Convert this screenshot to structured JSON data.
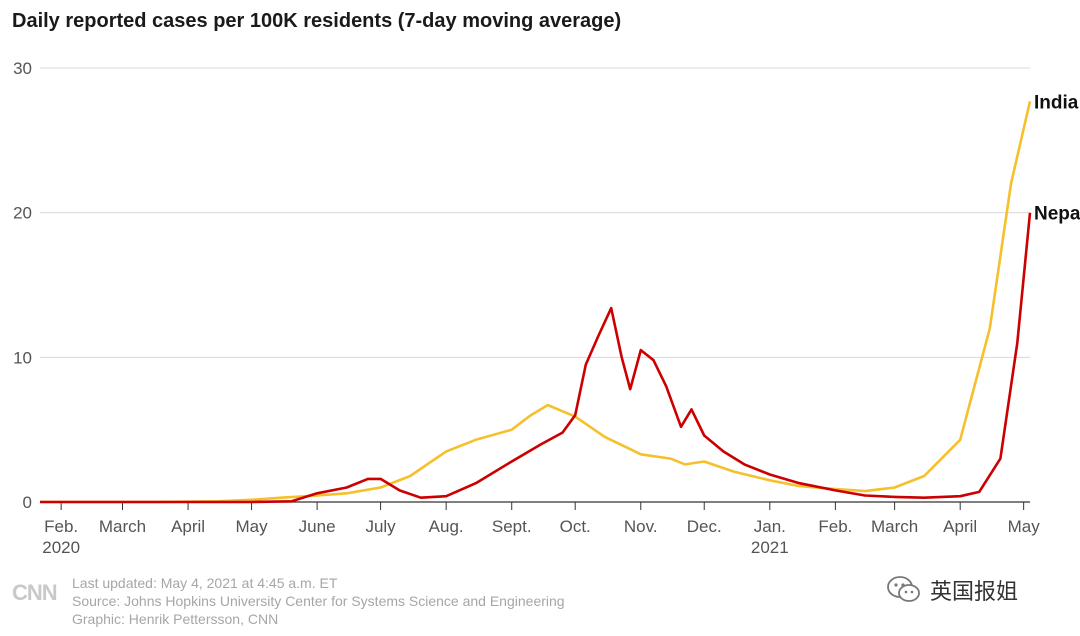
{
  "title": "Daily reported cases per 100K residents (7-day moving average)",
  "footer": {
    "logo": "CNN",
    "updated": "Last updated: May 4, 2021 at 4:45 a.m. ET",
    "source": "Source: Johns Hopkins University Center for Systems Science and Engineering",
    "graphic": "Graphic: Henrik Pettersson, CNN"
  },
  "watermark": {
    "text": "英国报姐",
    "icon": "wechat-icon"
  },
  "colors": {
    "india": "#f5c02c",
    "nepal": "#cc0000",
    "grid": "#d8d8d8"
  },
  "chart_data": {
    "type": "line",
    "title": "Daily reported cases per 100K residents (7-day moving average)",
    "ylim": [
      0,
      30
    ],
    "yticks": [
      "0",
      "10",
      "20",
      "30"
    ],
    "xrange": [
      "2020-01-22",
      "2021-05-04"
    ],
    "xticks": [
      {
        "date": "2020-02-01",
        "label": "Feb.",
        "sub": "2020"
      },
      {
        "date": "2020-03-01",
        "label": "March"
      },
      {
        "date": "2020-04-01",
        "label": "April"
      },
      {
        "date": "2020-05-01",
        "label": "May"
      },
      {
        "date": "2020-06-01",
        "label": "June"
      },
      {
        "date": "2020-07-01",
        "label": "July"
      },
      {
        "date": "2020-08-01",
        "label": "Aug."
      },
      {
        "date": "2020-09-01",
        "label": "Sept."
      },
      {
        "date": "2020-10-01",
        "label": "Oct."
      },
      {
        "date": "2020-11-01",
        "label": "Nov."
      },
      {
        "date": "2020-12-01",
        "label": "Dec."
      },
      {
        "date": "2021-01-01",
        "label": "Jan.",
        "sub": "2021"
      },
      {
        "date": "2021-02-01",
        "label": "Feb."
      },
      {
        "date": "2021-03-01",
        "label": "March"
      },
      {
        "date": "2021-04-01",
        "label": "April"
      },
      {
        "date": "2021-05-01",
        "label": "May"
      }
    ],
    "grid": true,
    "series": [
      {
        "name": "India",
        "color": "#f5c02c",
        "points": [
          [
            "2020-01-22",
            0
          ],
          [
            "2020-03-15",
            0
          ],
          [
            "2020-04-15",
            0.05
          ],
          [
            "2020-05-01",
            0.15
          ],
          [
            "2020-05-15",
            0.3
          ],
          [
            "2020-06-01",
            0.45
          ],
          [
            "2020-06-15",
            0.6
          ],
          [
            "2020-07-01",
            1.0
          ],
          [
            "2020-07-15",
            1.8
          ],
          [
            "2020-08-01",
            3.5
          ],
          [
            "2020-08-15",
            4.3
          ],
          [
            "2020-09-01",
            5.0
          ],
          [
            "2020-09-10",
            6.0
          ],
          [
            "2020-09-18",
            6.7
          ],
          [
            "2020-10-01",
            5.9
          ],
          [
            "2020-10-15",
            4.5
          ],
          [
            "2020-11-01",
            3.3
          ],
          [
            "2020-11-15",
            3.0
          ],
          [
            "2020-11-22",
            2.6
          ],
          [
            "2020-12-01",
            2.8
          ],
          [
            "2020-12-15",
            2.1
          ],
          [
            "2021-01-01",
            1.5
          ],
          [
            "2021-01-15",
            1.1
          ],
          [
            "2021-02-01",
            0.9
          ],
          [
            "2021-02-15",
            0.75
          ],
          [
            "2021-03-01",
            1.0
          ],
          [
            "2021-03-15",
            1.8
          ],
          [
            "2021-04-01",
            4.3
          ],
          [
            "2021-04-15",
            12.0
          ],
          [
            "2021-04-25",
            22.0
          ],
          [
            "2021-05-04",
            27.7
          ]
        ]
      },
      {
        "name": "Nepal",
        "color": "#cc0000",
        "points": [
          [
            "2020-01-22",
            0
          ],
          [
            "2020-05-01",
            0
          ],
          [
            "2020-05-20",
            0.05
          ],
          [
            "2020-06-01",
            0.6
          ],
          [
            "2020-06-15",
            1.0
          ],
          [
            "2020-06-25",
            1.6
          ],
          [
            "2020-07-01",
            1.6
          ],
          [
            "2020-07-10",
            0.8
          ],
          [
            "2020-07-20",
            0.3
          ],
          [
            "2020-08-01",
            0.4
          ],
          [
            "2020-08-15",
            1.3
          ],
          [
            "2020-09-01",
            2.8
          ],
          [
            "2020-09-15",
            4.0
          ],
          [
            "2020-09-25",
            4.8
          ],
          [
            "2020-10-01",
            6.0
          ],
          [
            "2020-10-06",
            9.5
          ],
          [
            "2020-10-12",
            11.5
          ],
          [
            "2020-10-18",
            13.4
          ],
          [
            "2020-10-23",
            10.0
          ],
          [
            "2020-10-27",
            7.8
          ],
          [
            "2020-11-01",
            10.5
          ],
          [
            "2020-11-07",
            9.8
          ],
          [
            "2020-11-13",
            8.0
          ],
          [
            "2020-11-20",
            5.2
          ],
          [
            "2020-11-25",
            6.4
          ],
          [
            "2020-12-01",
            4.6
          ],
          [
            "2020-12-10",
            3.5
          ],
          [
            "2020-12-20",
            2.6
          ],
          [
            "2021-01-01",
            1.9
          ],
          [
            "2021-01-15",
            1.3
          ],
          [
            "2021-02-01",
            0.8
          ],
          [
            "2021-02-15",
            0.45
          ],
          [
            "2021-03-01",
            0.35
          ],
          [
            "2021-03-15",
            0.3
          ],
          [
            "2021-04-01",
            0.4
          ],
          [
            "2021-04-10",
            0.7
          ],
          [
            "2021-04-20",
            3.0
          ],
          [
            "2021-04-28",
            11.0
          ],
          [
            "2021-05-04",
            20.0
          ]
        ]
      }
    ]
  }
}
